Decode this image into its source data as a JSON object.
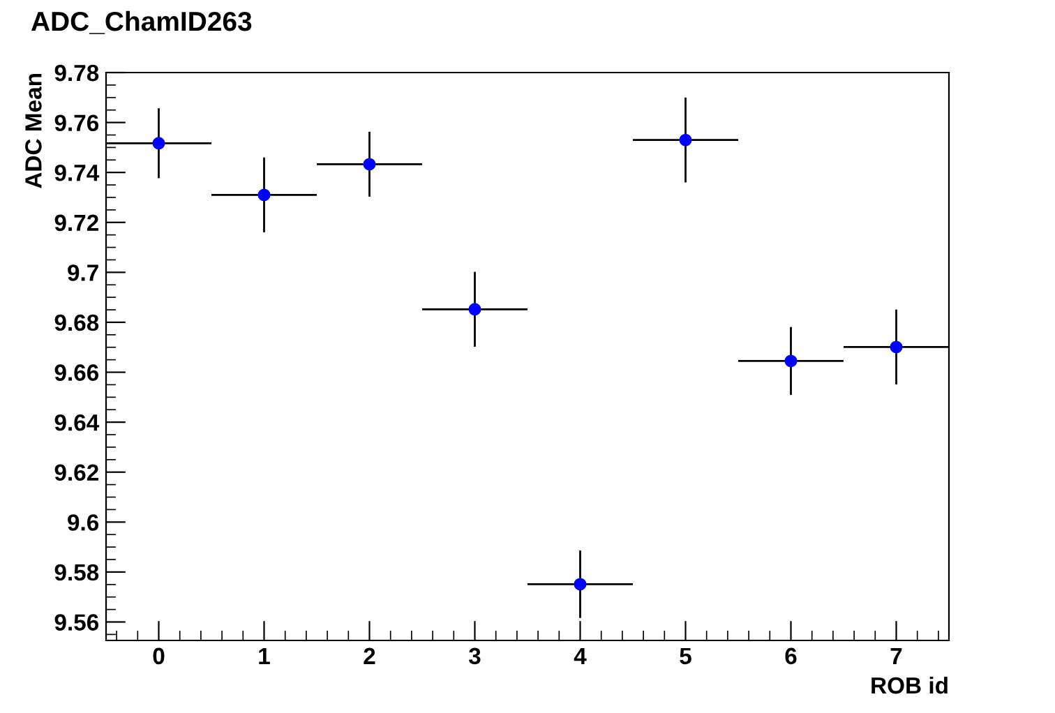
{
  "chart_data": {
    "type": "scatter",
    "title": "ADC_ChamID263",
    "xlabel": "ROB id",
    "ylabel": "ADC Mean",
    "x": [
      0,
      1,
      2,
      3,
      4,
      5,
      6,
      7
    ],
    "series": [
      {
        "color": "#0000ff",
        "values": [
          9.7517,
          9.731,
          9.7433,
          9.6852,
          9.5751,
          9.753,
          9.6645,
          9.6701
        ],
        "errors": [
          0.014,
          0.015,
          0.013,
          0.015,
          0.0135,
          0.017,
          0.0136,
          0.015
        ],
        "xerrors": [
          0.5,
          0.5,
          0.5,
          0.5,
          0.5,
          0.5,
          0.5,
          0.5
        ]
      }
    ],
    "xlim": [
      -0.5,
      7.5
    ],
    "xticks": [
      0,
      1,
      2,
      3,
      4,
      5,
      6,
      7
    ],
    "ylim": [
      9.5526,
      9.78
    ],
    "yticks": [
      9.56,
      9.58,
      9.6,
      9.62,
      9.64,
      9.66,
      9.68,
      9.7,
      9.72,
      9.74,
      9.76,
      9.78
    ],
    "marker": "circle",
    "grid": false,
    "legend": false
  }
}
